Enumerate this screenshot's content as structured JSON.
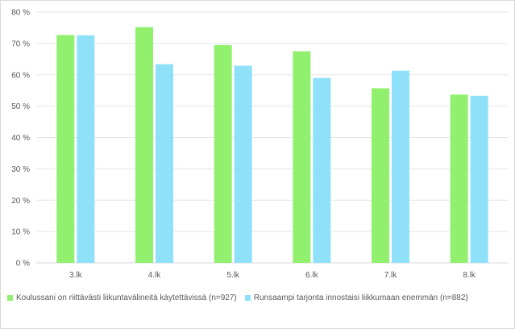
{
  "chart_data": {
    "type": "bar",
    "categories": [
      "3.lk",
      "4.lk",
      "5.lk",
      "6.lk",
      "7.lk",
      "8.lk"
    ],
    "series": [
      {
        "name": "Koulussani on riittävästi liikuntavälineitä käytettävissä (n=927)",
        "color": "#92f06f",
        "values": [
          72.7,
          75.2,
          69.5,
          67.5,
          55.7,
          53.7
        ]
      },
      {
        "name": "Runsaampi tarjonta innostaisi liikkumaan enemmän (n=882)",
        "color": "#8fe1f9",
        "values": [
          72.6,
          63.4,
          62.9,
          59.0,
          61.3,
          53.3
        ]
      }
    ],
    "y_ticks": [
      "0 %",
      "10 %",
      "20 %",
      "30 %",
      "40 %",
      "50 %",
      "60 %",
      "70 %",
      "80 %"
    ],
    "ylim": [
      0,
      80
    ],
    "grid": true,
    "legend": "bottom"
  }
}
